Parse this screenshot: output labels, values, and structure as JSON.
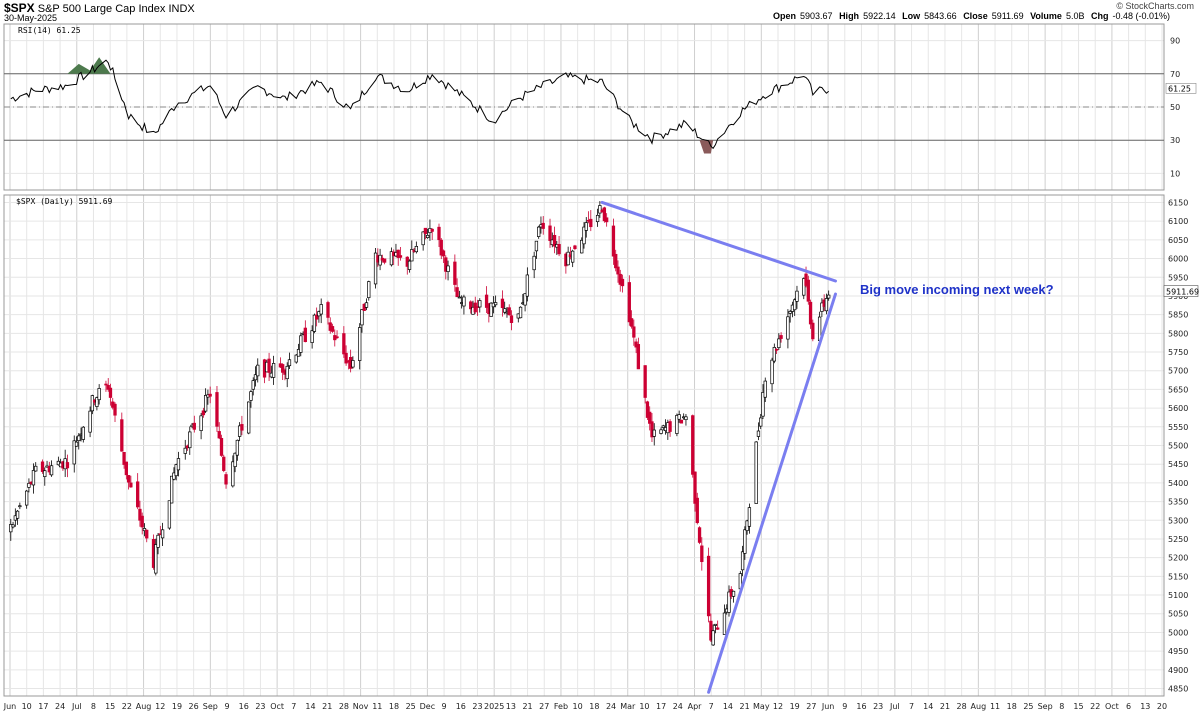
{
  "header": {
    "symbol": "$SPX",
    "name": "S&P 500 Large Cap Index",
    "exchange": "INDX",
    "date": "30-May-2025",
    "brand": "© StockCharts.com",
    "stats": {
      "open_label": "Open",
      "open": "5903.67",
      "high_label": "High",
      "high": "5922.14",
      "low_label": "Low",
      "low": "5843.66",
      "close_label": "Close",
      "close": "5911.69",
      "volume_label": "Volume",
      "volume": "5.0B",
      "chg_label": "Chg",
      "chg": "-0.48 (-0.01%)"
    }
  },
  "rsi_panel": {
    "label": "RSI(14) 61.25",
    "last_value_tag": "61.25"
  },
  "price_panel": {
    "label": "$SPX (Daily) 5911.69",
    "last_price_tag": "5911.69"
  },
  "colors": {
    "up_candle": "#000000",
    "down_candle": "#cc0033",
    "trendline": "#7a7ef0",
    "rsi_line": "#000000",
    "rsi_overbought_fill": "#4d7a4d",
    "rsi_oversold_fill": "#8a5a5a",
    "grid": "#e6e6e6",
    "annotation": "#1f32c8"
  },
  "chart_data": [
    {
      "type": "line",
      "title": "RSI(14) 61.25",
      "y_ticks": [
        10,
        30,
        50,
        70,
        90
      ],
      "ylim": [
        0,
        100
      ],
      "reference_lines": [
        30,
        50,
        70
      ],
      "grid": true,
      "x": [
        "2024-06-03",
        "2024-06-14",
        "2024-06-28",
        "2024-07-10",
        "2024-07-16",
        "2024-07-25",
        "2024-08-05",
        "2024-08-15",
        "2024-08-30",
        "2024-09-06",
        "2024-09-20",
        "2024-10-02",
        "2024-10-18",
        "2024-10-31",
        "2024-11-11",
        "2024-11-25",
        "2024-12-06",
        "2024-12-18",
        "2025-01-02",
        "2025-01-13",
        "2025-01-23",
        "2025-02-03",
        "2025-02-19",
        "2025-03-03",
        "2025-03-13",
        "2025-03-28",
        "2025-04-08",
        "2025-04-21",
        "2025-05-02",
        "2025-05-14",
        "2025-05-19",
        "2025-05-23",
        "2025-05-30"
      ],
      "values": [
        55,
        60,
        63,
        73,
        78,
        45,
        33,
        52,
        63,
        45,
        62,
        55,
        65,
        48,
        69,
        60,
        70,
        58,
        42,
        55,
        62,
        68,
        65,
        42,
        31,
        40,
        26,
        47,
        58,
        66,
        70,
        58,
        61.25
      ]
    },
    {
      "type": "line",
      "title": "$SPX (Daily) 5911.69",
      "annotation": "Big move incoming next week?",
      "y_ticks": [
        4850,
        4900,
        4950,
        5000,
        5050,
        5100,
        5150,
        5200,
        5250,
        5300,
        5350,
        5400,
        5450,
        5500,
        5550,
        5600,
        5650,
        5700,
        5750,
        5800,
        5850,
        5900,
        5950,
        6000,
        6050,
        6100,
        6150
      ],
      "ylim": [
        4830,
        6170
      ],
      "x_ticks": [
        "Jun",
        "10",
        "17",
        "24",
        "Jul",
        "8",
        "15",
        "22",
        "Aug",
        "12",
        "19",
        "26",
        "Sep",
        "9",
        "16",
        "23",
        "Oct",
        "7",
        "14",
        "21",
        "28",
        "Nov",
        "11",
        "18",
        "25",
        "Dec",
        "9",
        "16",
        "23",
        "2025",
        "13",
        "21",
        "27",
        "Feb",
        "10",
        "18",
        "24",
        "Mar",
        "10",
        "17",
        "24",
        "Apr",
        "7",
        "14",
        "21",
        "May",
        "12",
        "19",
        "27",
        "Jun",
        "9",
        "16",
        "23",
        "Jul",
        "7",
        "14",
        "21",
        "28",
        "Aug",
        "11",
        "18",
        "25",
        "Sep",
        "8",
        "15",
        "22",
        "Oct",
        "6",
        "13",
        "20"
      ],
      "grid": true,
      "x": [
        "2024-06-03",
        "2024-06-14",
        "2024-06-28",
        "2024-07-10",
        "2024-07-16",
        "2024-07-25",
        "2024-08-05",
        "2024-08-15",
        "2024-08-30",
        "2024-09-06",
        "2024-09-20",
        "2024-10-02",
        "2024-10-18",
        "2024-10-31",
        "2024-11-11",
        "2024-11-25",
        "2024-12-06",
        "2024-12-18",
        "2025-01-02",
        "2025-01-13",
        "2025-01-23",
        "2025-02-03",
        "2025-02-19",
        "2025-03-03",
        "2025-03-13",
        "2025-03-28",
        "2025-04-08",
        "2025-04-21",
        "2025-05-02",
        "2025-05-14",
        "2025-05-19",
        "2025-05-23",
        "2025-05-30"
      ],
      "values": [
        5280,
        5430,
        5460,
        5630,
        5660,
        5400,
        5190,
        5450,
        5640,
        5410,
        5700,
        5710,
        5860,
        5710,
        6010,
        5990,
        6090,
        5880,
        5870,
        5840,
        6100,
        6000,
        6140,
        5850,
        5520,
        5580,
        4980,
        5160,
        5690,
        5880,
        5960,
        5800,
        5911.69
      ],
      "trendlines": [
        {
          "from": [
            "2025-02-19",
            6150
          ],
          "to": [
            "2025-06-02",
            5940
          ]
        },
        {
          "from": [
            "2025-04-07",
            4840
          ],
          "to": [
            "2025-06-02",
            5905
          ]
        }
      ]
    }
  ]
}
